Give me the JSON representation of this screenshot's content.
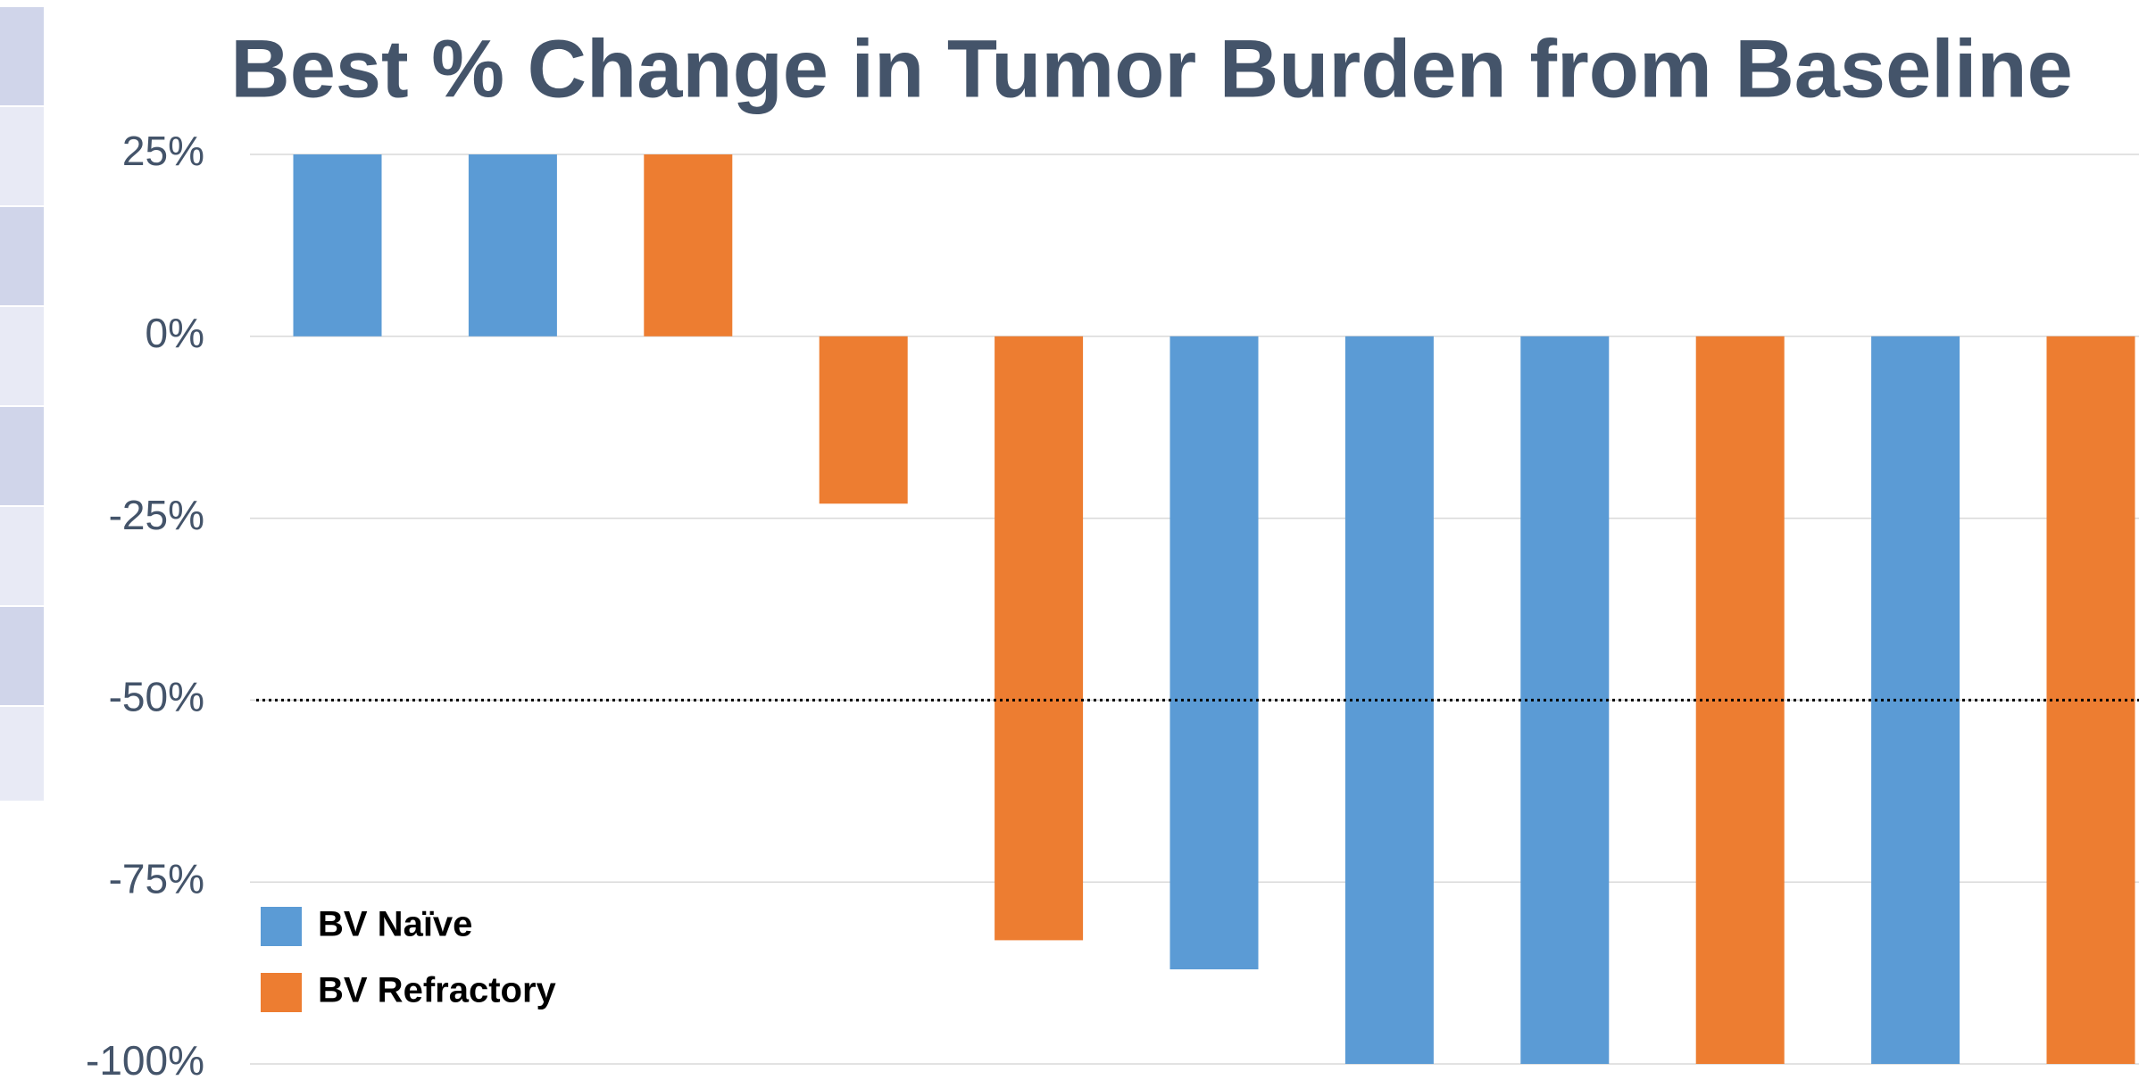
{
  "chart_data": {
    "type": "bar",
    "title": "Best % Change in Tumor Burden from Baseline",
    "categories": [
      null,
      null,
      null,
      null,
      null,
      null,
      null,
      null,
      null,
      null,
      null
    ],
    "series": [
      {
        "name": "BV Naïve",
        "color": "#5b9bd5",
        "values": [
          25,
          25,
          null,
          null,
          null,
          -87,
          -100,
          -100,
          null,
          -100,
          null
        ]
      },
      {
        "name": "BV Refractory",
        "color": "#ed7d31",
        "values": [
          null,
          null,
          25,
          -23,
          -83,
          null,
          null,
          null,
          -100,
          null,
          -100
        ]
      }
    ],
    "ylim": [
      -100,
      25
    ],
    "yticks": [
      {
        "value": -100,
        "label": "-100%"
      },
      {
        "value": -75,
        "label": "-75%"
      },
      {
        "value": -50,
        "label": "-50%"
      },
      {
        "value": -25,
        "label": "-25%"
      },
      {
        "value": 0,
        "label": "0%"
      },
      {
        "value": 25,
        "label": "25%"
      }
    ],
    "reference_line": -50,
    "grid": true,
    "legend": "bottom-left"
  }
}
